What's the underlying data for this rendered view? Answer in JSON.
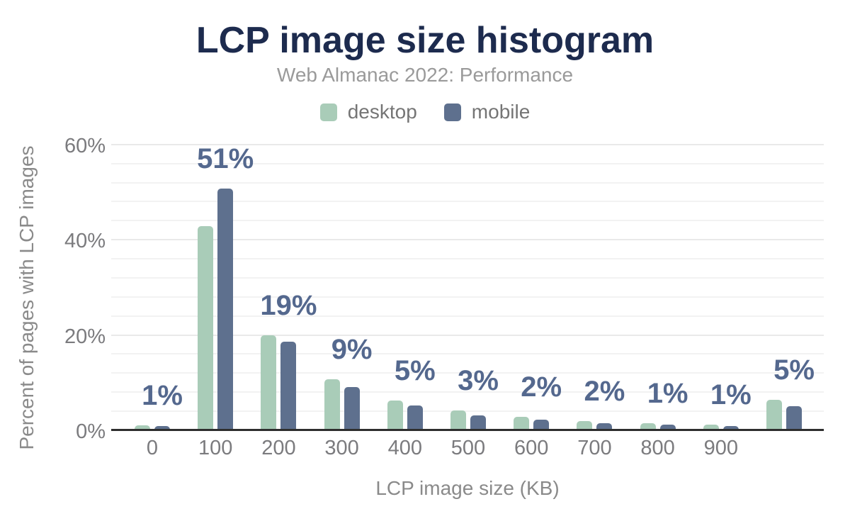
{
  "chart_data": {
    "type": "bar",
    "title": "LCP image size histogram",
    "subtitle": "Web Almanac 2022: Performance",
    "xlabel": "LCP image size (KB)",
    "ylabel": "Percent of pages with LCP images",
    "categories": [
      "0",
      "100",
      "200",
      "300",
      "400",
      "500",
      "600",
      "700",
      "800",
      "900",
      ""
    ],
    "series": [
      {
        "name": "desktop",
        "color": "#a9ccb8",
        "values": [
          1.0,
          42.9,
          20.0,
          10.7,
          6.3,
          4.1,
          2.9,
          1.9,
          1.5,
          1.2,
          6.4
        ]
      },
      {
        "name": "mobile",
        "color": "#5e708e",
        "values": [
          0.9,
          50.7,
          18.6,
          9.1,
          5.2,
          3.1,
          2.3,
          1.5,
          1.2,
          0.9,
          5.1
        ]
      }
    ],
    "bar_labels": {
      "labeled_series": "mobile",
      "values": [
        "1%",
        "51%",
        "19%",
        "9%",
        "5%",
        "3%",
        "2%",
        "2%",
        "1%",
        "1%",
        "5%"
      ]
    },
    "yticks": [
      {
        "value": 0,
        "label": "0%"
      },
      {
        "value": 20,
        "label": "20%"
      },
      {
        "value": 40,
        "label": "40%"
      },
      {
        "value": 60,
        "label": "60%"
      }
    ],
    "ylim": [
      0,
      62
    ],
    "grid": {
      "orientation": "horizontal",
      "minor_step_pct": 4,
      "major_step_pct": 20
    },
    "legend_position": "top",
    "colors": {
      "desktop": "#a9ccb8",
      "mobile": "#5e708e",
      "title": "#1d2b4e",
      "subtitle": "#9a9a9a",
      "annotation": "#54688e",
      "axis_text": "#7b7b7e",
      "axis_title": "#8a8a8a",
      "axis_line": "#2e2e2e",
      "grid_minor": "#f2f2f2",
      "grid_major": "#e9e9e9",
      "legend_text": "#757575",
      "background": "#ffffff"
    }
  }
}
